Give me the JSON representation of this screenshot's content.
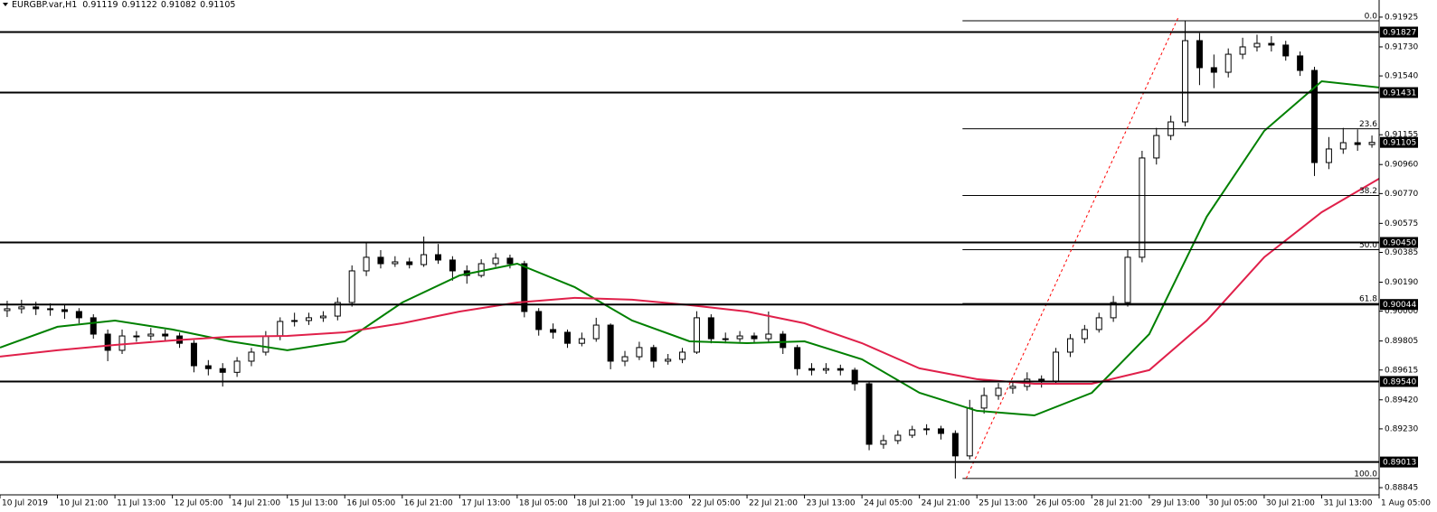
{
  "chart_data": {
    "type": "candlestick",
    "symbol": "EURGBP.var,H1",
    "header_ohlc": [
      0.91119,
      0.91122,
      0.91082,
      0.91105
    ],
    "xlim": [
      0,
      384
    ],
    "ylim": [
      0.88798,
      0.92037
    ],
    "xticks": [
      {
        "value": 0,
        "label": "10 Jul 2019"
      },
      {
        "value": 16,
        "label": "10 Jul 21:00"
      },
      {
        "value": 32,
        "label": "11 Jul 13:00"
      },
      {
        "value": 48,
        "label": "12 Jul 05:00"
      },
      {
        "value": 64,
        "label": "14 Jul 21:00"
      },
      {
        "value": 80,
        "label": "15 Jul 13:00"
      },
      {
        "value": 96,
        "label": "16 Jul 05:00"
      },
      {
        "value": 112,
        "label": "16 Jul 21:00"
      },
      {
        "value": 128,
        "label": "17 Jul 13:00"
      },
      {
        "value": 144,
        "label": "18 Jul 05:00"
      },
      {
        "value": 160,
        "label": "18 Jul 21:00"
      },
      {
        "value": 176,
        "label": "19 Jul 13:00"
      },
      {
        "value": 192,
        "label": "22 Jul 05:00"
      },
      {
        "value": 208,
        "label": "22 Jul 21:00"
      },
      {
        "value": 224,
        "label": "23 Jul 13:00"
      },
      {
        "value": 240,
        "label": "24 Jul 05:00"
      },
      {
        "value": 256,
        "label": "24 Jul 21:00"
      },
      {
        "value": 272,
        "label": "25 Jul 13:00"
      },
      {
        "value": 288,
        "label": "26 Jul 05:00"
      },
      {
        "value": 304,
        "label": "28 Jul 21:00"
      },
      {
        "value": 320,
        "label": "29 Jul 13:00"
      },
      {
        "value": 336,
        "label": "30 Jul 05:00"
      },
      {
        "value": 352,
        "label": "30 Jul 21:00"
      },
      {
        "value": 368,
        "label": "31 Jul 13:00"
      },
      {
        "value": 384,
        "label": "1 Aug 05:00"
      }
    ],
    "yticks": [
      0.91925,
      {
        "value": 0.9173,
        "label": "0.91730"
      },
      {
        "value": 0.9154,
        "label": "0.91540"
      },
      0.91155,
      {
        "value": 0.9096,
        "label": "0.90960"
      },
      {
        "value": 0.9077,
        "label": "0.90770"
      },
      0.90575,
      0.90385,
      {
        "value": 0.9019,
        "label": "0.90190"
      },
      {
        "value": 0.9,
        "label": "0.90000"
      },
      0.89805,
      0.89615,
      {
        "value": 0.8942,
        "label": "0.89420"
      },
      {
        "value": 0.8923,
        "label": "0.89230"
      },
      0.88845
    ],
    "candles": {
      "x": [
        2,
        6,
        10,
        14,
        18,
        22,
        26,
        30,
        34,
        38,
        42,
        46,
        50,
        54,
        58,
        62,
        66,
        70,
        74,
        78,
        82,
        86,
        90,
        94,
        98,
        102,
        106,
        110,
        114,
        118,
        122,
        126,
        130,
        134,
        138,
        142,
        146,
        150,
        154,
        158,
        162,
        166,
        170,
        174,
        178,
        182,
        186,
        190,
        194,
        198,
        202,
        206,
        210,
        214,
        218,
        222,
        226,
        230,
        234,
        238,
        242,
        246,
        250,
        254,
        258,
        262,
        266,
        270,
        274,
        278,
        282,
        286,
        290,
        294,
        298,
        302,
        306,
        310,
        314,
        318,
        322,
        326,
        330,
        334,
        338,
        342,
        346,
        350,
        354,
        358,
        362,
        366,
        370,
        374,
        378,
        382
      ],
      "ohlc": [
        [
          0.90004,
          0.90068,
          0.89962,
          0.90016
        ],
        [
          0.90016,
          0.90075,
          0.89985,
          0.90028
        ],
        [
          0.90028,
          0.90062,
          0.89975,
          0.90016
        ],
        [
          0.90016,
          0.90052,
          0.8997,
          0.9001
        ],
        [
          0.9001,
          0.9004,
          0.8995,
          0.89998
        ],
        [
          0.89998,
          0.9002,
          0.8992,
          0.89957
        ],
        [
          0.89957,
          0.8998,
          0.8982,
          0.8985
        ],
        [
          0.8985,
          0.8988,
          0.89673,
          0.89744
        ],
        [
          0.89744,
          0.8988,
          0.8972,
          0.89838
        ],
        [
          0.89838,
          0.8987,
          0.898,
          0.89838
        ],
        [
          0.89838,
          0.8989,
          0.8981,
          0.8985
        ],
        [
          0.8985,
          0.8988,
          0.898,
          0.89838
        ],
        [
          0.89838,
          0.8986,
          0.8976,
          0.8979
        ],
        [
          0.8979,
          0.8981,
          0.896,
          0.89643
        ],
        [
          0.89643,
          0.8968,
          0.8958,
          0.89624
        ],
        [
          0.89624,
          0.8966,
          0.89507,
          0.896
        ],
        [
          0.896,
          0.897,
          0.8957,
          0.89673
        ],
        [
          0.89673,
          0.8976,
          0.8964,
          0.89732
        ],
        [
          0.89732,
          0.8987,
          0.8971,
          0.89838
        ],
        [
          0.89838,
          0.8996,
          0.8981,
          0.89933
        ],
        [
          0.89933,
          0.8999,
          0.899,
          0.89939
        ],
        [
          0.89939,
          0.8999,
          0.8991,
          0.89957
        ],
        [
          0.89957,
          0.9,
          0.8993,
          0.89968
        ],
        [
          0.89968,
          0.9009,
          0.8994,
          0.90057
        ],
        [
          0.90057,
          0.903,
          0.9003,
          0.90264
        ],
        [
          0.90264,
          0.90453,
          0.9023,
          0.90353
        ],
        [
          0.90353,
          0.904,
          0.9028,
          0.90311
        ],
        [
          0.90311,
          0.9036,
          0.9029,
          0.90323
        ],
        [
          0.90323,
          0.9035,
          0.9028,
          0.90305
        ],
        [
          0.90305,
          0.90489,
          0.9029,
          0.9037
        ],
        [
          0.9037,
          0.9044,
          0.9031,
          0.90335
        ],
        [
          0.90335,
          0.9036,
          0.902,
          0.90264
        ],
        [
          0.90264,
          0.903,
          0.9018,
          0.90234
        ],
        [
          0.90234,
          0.9034,
          0.9022,
          0.90311
        ],
        [
          0.90311,
          0.9038,
          0.9029,
          0.90347
        ],
        [
          0.90347,
          0.9037,
          0.9028,
          0.90311
        ],
        [
          0.90311,
          0.9033,
          0.8996,
          0.89998
        ],
        [
          0.89998,
          0.9002,
          0.8984,
          0.8988
        ],
        [
          0.8988,
          0.8992,
          0.8982,
          0.89862
        ],
        [
          0.89862,
          0.8988,
          0.8976,
          0.8979
        ],
        [
          0.8979,
          0.8986,
          0.8977,
          0.8982
        ],
        [
          0.8982,
          0.89957,
          0.898,
          0.89909
        ],
        [
          0.89909,
          0.8992,
          0.8962,
          0.89673
        ],
        [
          0.89673,
          0.8974,
          0.8964,
          0.89702
        ],
        [
          0.89702,
          0.898,
          0.8968,
          0.89762
        ],
        [
          0.89762,
          0.8978,
          0.8963,
          0.89673
        ],
        [
          0.89673,
          0.8972,
          0.8965,
          0.89685
        ],
        [
          0.89685,
          0.8976,
          0.8966,
          0.89732
        ],
        [
          0.89732,
          0.9,
          0.8972,
          0.89957
        ],
        [
          0.89957,
          0.8998,
          0.8979,
          0.8982
        ],
        [
          0.8982,
          0.8986,
          0.8979,
          0.8982
        ],
        [
          0.8982,
          0.8987,
          0.898,
          0.89838
        ],
        [
          0.89838,
          0.8986,
          0.8979,
          0.8982
        ],
        [
          0.8982,
          0.89998,
          0.898,
          0.8985
        ],
        [
          0.8985,
          0.8987,
          0.8972,
          0.89762
        ],
        [
          0.89762,
          0.8978,
          0.8958,
          0.89624
        ],
        [
          0.89624,
          0.8966,
          0.8958,
          0.89614
        ],
        [
          0.89614,
          0.8966,
          0.8959,
          0.89624
        ],
        [
          0.89624,
          0.8965,
          0.8958,
          0.89614
        ],
        [
          0.89614,
          0.8963,
          0.8948,
          0.89525
        ],
        [
          0.89525,
          0.8954,
          0.8909,
          0.89129
        ],
        [
          0.89129,
          0.8919,
          0.891,
          0.89153
        ],
        [
          0.89153,
          0.8922,
          0.8913,
          0.89188
        ],
        [
          0.89188,
          0.8925,
          0.8917,
          0.89224
        ],
        [
          0.89224,
          0.8926,
          0.8919,
          0.8923
        ],
        [
          0.8923,
          0.8925,
          0.8916,
          0.892
        ],
        [
          0.892,
          0.8922,
          0.88905,
          0.89053
        ],
        [
          0.89053,
          0.8942,
          0.8903,
          0.89366
        ],
        [
          0.89366,
          0.895,
          0.8933,
          0.89448
        ],
        [
          0.89448,
          0.8953,
          0.8942,
          0.89496
        ],
        [
          0.89496,
          0.8954,
          0.8946,
          0.89508
        ],
        [
          0.89508,
          0.896,
          0.8948,
          0.89555
        ],
        [
          0.89555,
          0.8958,
          0.895,
          0.89543
        ],
        [
          0.89543,
          0.8976,
          0.8952,
          0.89732
        ],
        [
          0.89732,
          0.8985,
          0.897,
          0.8982
        ],
        [
          0.8982,
          0.8991,
          0.8979,
          0.8988
        ],
        [
          0.8988,
          0.8999,
          0.8986,
          0.89957
        ],
        [
          0.89957,
          0.901,
          0.8993,
          0.90057
        ],
        [
          0.90057,
          0.904,
          0.9003,
          0.90353
        ],
        [
          0.90353,
          0.9105,
          0.9032,
          0.91003
        ],
        [
          0.91003,
          0.912,
          0.9096,
          0.9115
        ],
        [
          0.9115,
          0.9128,
          0.9112,
          0.91239
        ],
        [
          0.91239,
          0.91898,
          0.9121,
          0.91771
        ],
        [
          0.91771,
          0.9182,
          0.9148,
          0.91594
        ],
        [
          0.91594,
          0.9168,
          0.9146,
          0.91564
        ],
        [
          0.91564,
          0.9172,
          0.9153,
          0.91682
        ],
        [
          0.91682,
          0.9179,
          0.9165,
          0.9173
        ],
        [
          0.9173,
          0.9181,
          0.917,
          0.91753
        ],
        [
          0.91753,
          0.918,
          0.917,
          0.91742
        ],
        [
          0.91742,
          0.9177,
          0.9164,
          0.91671
        ],
        [
          0.91671,
          0.917,
          0.9154,
          0.91576
        ],
        [
          0.91576,
          0.916,
          0.90885,
          0.90973
        ],
        [
          0.90973,
          0.9114,
          0.9093,
          0.91062
        ],
        [
          0.91062,
          0.912,
          0.9103,
          0.91103
        ],
        [
          0.91103,
          0.9119,
          0.9105,
          0.91091
        ],
        [
          0.91091,
          0.9115,
          0.9107,
          0.91105
        ]
      ]
    },
    "series": [
      {
        "color": "#008000",
        "x": [
          0,
          16,
          32,
          48,
          64,
          80,
          96,
          112,
          128,
          144,
          160,
          176,
          192,
          208,
          224,
          240,
          256,
          272,
          288,
          304,
          320,
          336,
          352,
          368,
          384
        ],
        "values": [
          0.89762,
          0.89898,
          0.89939,
          0.8988,
          0.89803,
          0.89744,
          0.89803,
          0.90057,
          0.90234,
          0.90311,
          0.90158,
          0.89939,
          0.89803,
          0.89791,
          0.89803,
          0.89685,
          0.89466,
          0.89348,
          0.89318,
          0.89466,
          0.8985,
          0.90619,
          0.9118,
          0.91505,
          0.91464
        ]
      },
      {
        "color": "#e0204a",
        "x": [
          0,
          16,
          32,
          48,
          64,
          80,
          96,
          112,
          128,
          144,
          160,
          176,
          192,
          208,
          224,
          240,
          256,
          272,
          288,
          304,
          320,
          336,
          352,
          368,
          384
        ],
        "values": [
          0.89703,
          0.89744,
          0.89779,
          0.89809,
          0.89833,
          0.89838,
          0.89862,
          0.89921,
          0.89998,
          0.90057,
          0.90087,
          0.90075,
          0.9004,
          0.89998,
          0.89921,
          0.89791,
          0.89626,
          0.89555,
          0.89525,
          0.89525,
          0.89614,
          0.89939,
          0.90353,
          0.90648,
          0.90867
        ]
      }
    ],
    "levels": [
      0.91827,
      0.91431,
      {
        "value": 0.9045,
        "label": "0.90450"
      },
      0.90044,
      {
        "value": 0.8954,
        "label": "0.89540"
      },
      0.89013
    ],
    "last_price": 0.91105,
    "fib": {
      "x_start": 268,
      "x_end": 384,
      "levels": [
        {
          "ratio": "0.0",
          "price": 0.91901
        },
        {
          "ratio": "23.6",
          "price": 0.91194
        },
        {
          "ratio": "38.2",
          "price": 0.90757
        },
        {
          "ratio": "50.0",
          "price": 0.90403
        },
        {
          "ratio": "61.8",
          "price": 0.9005
        },
        {
          "ratio": "100.0",
          "price": 0.88905
        }
      ],
      "trend": {
        "color": "#ff0000",
        "x": [
          269,
          328
        ],
        "y": [
          0.88905,
          0.91919
        ]
      }
    }
  }
}
